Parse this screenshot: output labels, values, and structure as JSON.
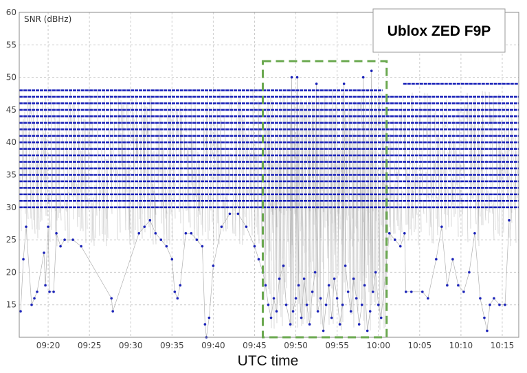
{
  "chart_data": {
    "type": "scatter",
    "title": "Ublox ZED F9P",
    "xlabel": "UTC time",
    "ylabel": "SNR (dBHz)",
    "ylim": [
      10,
      60
    ],
    "yticks": [
      15,
      20,
      25,
      30,
      35,
      40,
      45,
      50,
      55,
      60
    ],
    "xlim": [
      "09:16:30",
      "10:17:00"
    ],
    "xticks": [
      "09:20",
      "09:25",
      "09:30",
      "09:35",
      "09:40",
      "09:45",
      "09:50",
      "09:55",
      "10:00",
      "10:05",
      "10:10",
      "10:15"
    ],
    "grid": true,
    "highlight": {
      "x_range": [
        "09:46:00",
        "10:01:00"
      ],
      "y_range": [
        10,
        52.5
      ],
      "color": "#6aa84f"
    },
    "series": [
      {
        "marker_color": "#1a22b8",
        "line_color": "#b0b0b0",
        "level_bands": [
          {
            "value": 48,
            "x_start": "09:16:30",
            "x_end": "10:00:30"
          },
          {
            "value": 49,
            "x_start": "10:03:00",
            "x_end": "10:17:00"
          },
          {
            "value": 47,
            "x_start": "09:16:30",
            "x_end": "10:17:00"
          },
          {
            "value": 46,
            "x_start": "09:16:30",
            "x_end": "10:17:00"
          },
          {
            "value": 45,
            "x_start": "09:16:30",
            "x_end": "10:17:00"
          },
          {
            "value": 44,
            "x_start": "09:16:30",
            "x_end": "10:17:00"
          },
          {
            "value": 43,
            "x_start": "09:16:30",
            "x_end": "10:17:00"
          },
          {
            "value": 42,
            "x_start": "09:16:30",
            "x_end": "10:17:00"
          },
          {
            "value": 41,
            "x_start": "09:16:30",
            "x_end": "10:17:00"
          },
          {
            "value": 40,
            "x_start": "09:16:30",
            "x_end": "10:17:00"
          },
          {
            "value": 39,
            "x_start": "09:16:30",
            "x_end": "10:17:00"
          },
          {
            "value": 38,
            "x_start": "09:16:30",
            "x_end": "10:17:00"
          },
          {
            "value": 37,
            "x_start": "09:16:30",
            "x_end": "10:17:00"
          },
          {
            "value": 36,
            "x_start": "09:16:30",
            "x_end": "10:17:00"
          },
          {
            "value": 35,
            "x_start": "09:16:30",
            "x_end": "10:17:00"
          },
          {
            "value": 34,
            "x_start": "09:16:30",
            "x_end": "10:17:00"
          },
          {
            "value": 33,
            "x_start": "09:16:30",
            "x_end": "10:17:00"
          },
          {
            "value": 32,
            "x_start": "09:16:30",
            "x_end": "10:17:00"
          },
          {
            "value": 31,
            "x_start": "09:16:30",
            "x_end": "10:17:00"
          },
          {
            "value": 30,
            "x_start": "09:16:30",
            "x_end": "10:17:00"
          }
        ],
        "points": [
          [
            "09:16:40",
            14
          ],
          [
            "09:17:00",
            22
          ],
          [
            "09:17:20",
            27
          ],
          [
            "09:18:00",
            15
          ],
          [
            "09:18:20",
            16
          ],
          [
            "09:18:40",
            17
          ],
          [
            "09:20:10",
            17
          ],
          [
            "09:20:40",
            17
          ],
          [
            "09:21:00",
            26
          ],
          [
            "09:21:30",
            24
          ],
          [
            "09:22:00",
            25
          ],
          [
            "09:19:30",
            23
          ],
          [
            "09:19:40",
            18
          ],
          [
            "09:20:00",
            27
          ],
          [
            "09:23:00",
            25
          ],
          [
            "09:24:00",
            24
          ],
          [
            "09:27:40",
            16
          ],
          [
            "09:27:50",
            14
          ],
          [
            "09:31:00",
            26
          ],
          [
            "09:31:40",
            27
          ],
          [
            "09:32:20",
            28
          ],
          [
            "09:33:00",
            26
          ],
          [
            "09:33:40",
            25
          ],
          [
            "09:34:20",
            24
          ],
          [
            "09:35:00",
            22
          ],
          [
            "09:35:20",
            17
          ],
          [
            "09:35:40",
            16
          ],
          [
            "09:36:00",
            18
          ],
          [
            "09:36:40",
            26
          ],
          [
            "09:37:20",
            26
          ],
          [
            "09:38:00",
            25
          ],
          [
            "09:38:40",
            24
          ],
          [
            "09:39:00",
            12
          ],
          [
            "09:39:10",
            10
          ],
          [
            "09:39:30",
            13
          ],
          [
            "09:40:00",
            21
          ],
          [
            "09:41:00",
            27
          ],
          [
            "09:42:00",
            29
          ],
          [
            "09:43:00",
            29
          ],
          [
            "09:44:00",
            27
          ],
          [
            "09:45:00",
            24
          ],
          [
            "09:45:30",
            22
          ],
          [
            "09:46:00",
            20
          ],
          [
            "09:46:20",
            18
          ],
          [
            "09:46:40",
            15
          ],
          [
            "09:47:00",
            13
          ],
          [
            "09:47:20",
            16
          ],
          [
            "09:47:40",
            14
          ],
          [
            "09:48:00",
            19
          ],
          [
            "09:48:30",
            21
          ],
          [
            "09:48:50",
            15
          ],
          [
            "09:49:20",
            12
          ],
          [
            "09:49:40",
            14
          ],
          [
            "09:50:00",
            16
          ],
          [
            "09:50:20",
            18
          ],
          [
            "09:50:40",
            13
          ],
          [
            "09:51:00",
            19
          ],
          [
            "09:51:20",
            15
          ],
          [
            "09:51:40",
            12
          ],
          [
            "09:52:00",
            17
          ],
          [
            "09:52:20",
            20
          ],
          [
            "09:52:40",
            14
          ],
          [
            "09:53:00",
            16
          ],
          [
            "09:53:20",
            11
          ],
          [
            "09:53:40",
            15
          ],
          [
            "09:54:00",
            18
          ],
          [
            "09:54:20",
            13
          ],
          [
            "09:54:40",
            19
          ],
          [
            "09:55:00",
            16
          ],
          [
            "09:55:20",
            12
          ],
          [
            "09:55:40",
            15
          ],
          [
            "09:56:00",
            21
          ],
          [
            "09:56:20",
            17
          ],
          [
            "09:56:40",
            14
          ],
          [
            "09:57:00",
            19
          ],
          [
            "09:57:20",
            16
          ],
          [
            "09:57:40",
            12
          ],
          [
            "09:58:00",
            15
          ],
          [
            "09:58:20",
            18
          ],
          [
            "09:58:40",
            11
          ],
          [
            "09:59:00",
            14
          ],
          [
            "09:59:20",
            17
          ],
          [
            "09:59:40",
            20
          ],
          [
            "10:00:00",
            15
          ],
          [
            "10:00:20",
            13
          ],
          [
            "09:49:30",
            50
          ],
          [
            "09:50:10",
            50
          ],
          [
            "09:52:30",
            49
          ],
          [
            "09:55:50",
            49
          ],
          [
            "09:58:10",
            50
          ],
          [
            "09:59:10",
            51
          ],
          [
            "10:01:20",
            26
          ],
          [
            "10:02:00",
            25
          ],
          [
            "10:02:40",
            24
          ],
          [
            "10:03:10",
            26
          ],
          [
            "10:03:20",
            17
          ],
          [
            "10:04:00",
            17
          ],
          [
            "10:05:20",
            17
          ],
          [
            "10:06:00",
            16
          ],
          [
            "10:07:00",
            22
          ],
          [
            "10:07:40",
            27
          ],
          [
            "10:08:20",
            18
          ],
          [
            "10:09:00",
            22
          ],
          [
            "10:09:40",
            18
          ],
          [
            "10:10:20",
            17
          ],
          [
            "10:11:00",
            20
          ],
          [
            "10:11:40",
            26
          ],
          [
            "10:12:20",
            16
          ],
          [
            "10:12:50",
            13
          ],
          [
            "10:13:10",
            11
          ],
          [
            "10:13:30",
            15
          ],
          [
            "10:14:00",
            16
          ],
          [
            "10:14:40",
            15
          ],
          [
            "10:15:20",
            15
          ],
          [
            "10:15:50",
            28
          ]
        ]
      }
    ]
  },
  "colors": {
    "grid": "#cccccc",
    "highlight": "#6aa84f",
    "marker": "#1a22b8",
    "trace": "#b0b0b0"
  }
}
